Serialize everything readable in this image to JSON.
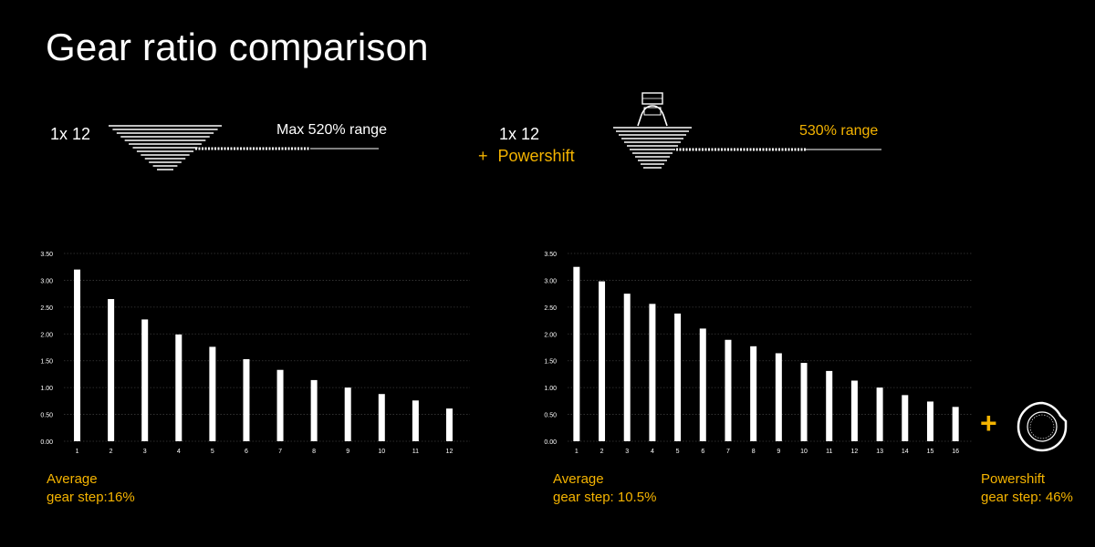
{
  "title": "Gear ratio comparison",
  "colors": {
    "accent": "#f5b400",
    "background": "#000000",
    "bars": "#ffffff",
    "grid": "#3a3a3a"
  },
  "configs": [
    {
      "label": "1x 12",
      "range": "Max 520% range"
    },
    {
      "label": "1x 12",
      "label_plus": "+",
      "label_extra": "Powershift",
      "range": "530% range"
    }
  ],
  "captions": {
    "left_line1": "Average",
    "left_line2": "gear step:16%",
    "mid_line1": "Average",
    "mid_line2": "gear step: 10.5%",
    "right_line1": "Powershift",
    "right_line2": "gear step: 46%"
  },
  "plus_sign": "+",
  "icons": {
    "cassette": "cassette-icon",
    "cassette_powershift": "cassette-powershift-icon",
    "powershift_hub": "powershift-hub-icon"
  },
  "chart_data": [
    {
      "type": "bar",
      "categories": [
        "1",
        "2",
        "3",
        "4",
        "5",
        "6",
        "7",
        "8",
        "9",
        "10",
        "11",
        "12"
      ],
      "values": [
        3.2,
        2.65,
        2.27,
        1.99,
        1.76,
        1.53,
        1.33,
        1.14,
        1.0,
        0.88,
        0.76,
        0.61
      ],
      "yticks": [
        "0.00",
        "0.50",
        "1.00",
        "1.50",
        "2.00",
        "2.50",
        "3.00",
        "3.50"
      ],
      "ylim": [
        0,
        3.5
      ],
      "grid": true
    },
    {
      "type": "bar",
      "categories": [
        "1",
        "2",
        "3",
        "4",
        "5",
        "6",
        "7",
        "8",
        "9",
        "10",
        "11",
        "12",
        "13",
        "14",
        "15",
        "16"
      ],
      "values": [
        3.25,
        2.98,
        2.75,
        2.56,
        2.38,
        2.1,
        1.89,
        1.77,
        1.64,
        1.46,
        1.31,
        1.13,
        1.0,
        0.86,
        0.74,
        0.64
      ],
      "yticks": [
        "0.00",
        "0.50",
        "1.00",
        "1.50",
        "2.00",
        "2.50",
        "3.00",
        "3.50"
      ],
      "ylim": [
        0,
        3.5
      ],
      "grid": true
    }
  ]
}
